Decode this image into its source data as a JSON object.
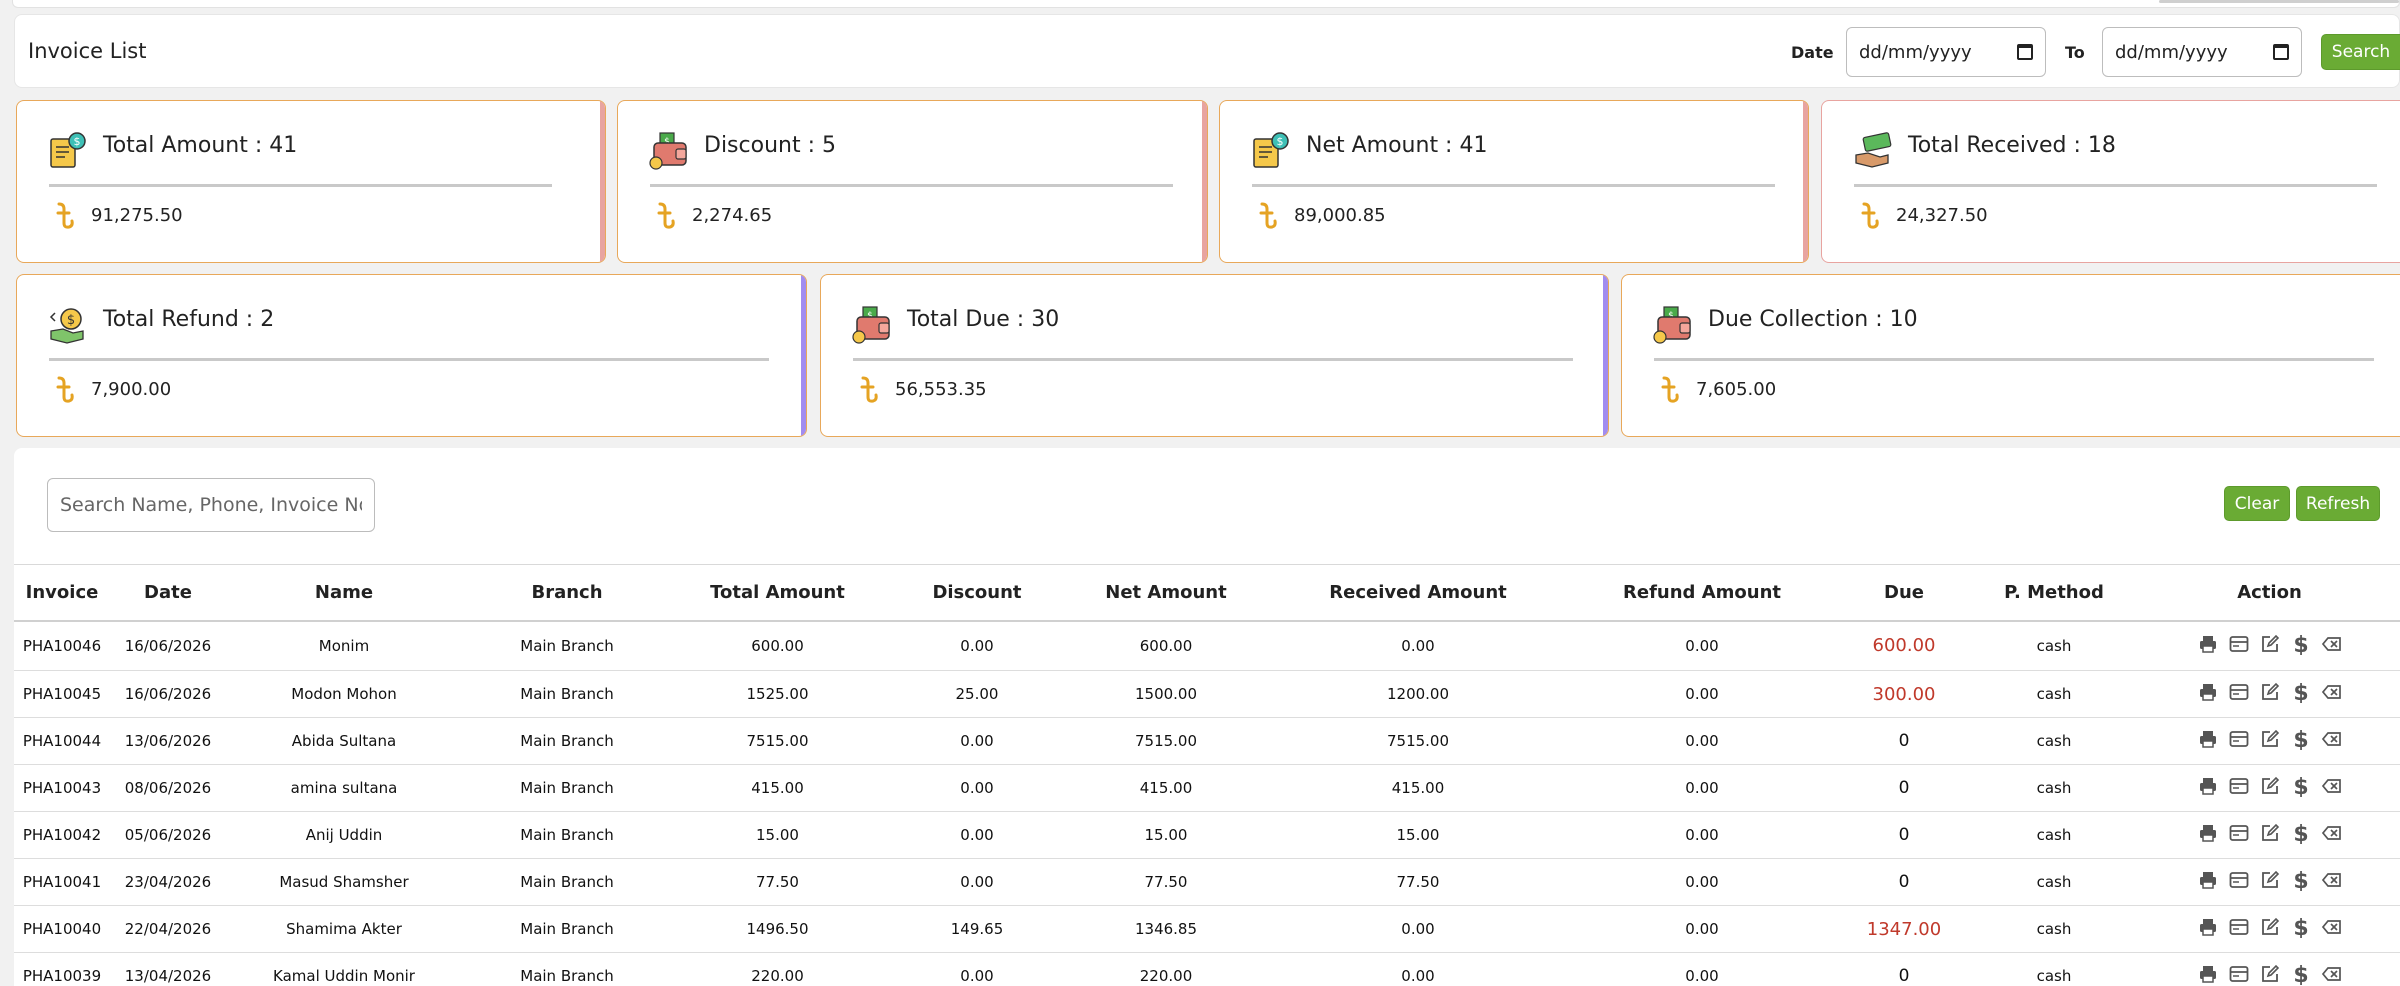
{
  "header": {
    "title": "Invoice List",
    "date_label": "Date",
    "to_label": "To",
    "date_from_placeholder": "dd/mm/yyyy",
    "date_to_placeholder": "dd/mm/yyyy",
    "search_label": "Search"
  },
  "currency_icon": "taka-icon",
  "cards": [
    {
      "label": "Total Amount : 41",
      "amount": "91,275.50",
      "icon": "invoice-dollar-icon",
      "border": "#e8a85a",
      "accent": "#e8a4a0"
    },
    {
      "label": "Discount : 5",
      "amount": "2,274.65",
      "icon": "wallet-icon",
      "border": "#e8a85a",
      "accent": "#e8a4a0"
    },
    {
      "label": "Net Amount : 41",
      "amount": "89,000.85",
      "icon": "invoice-dollar-icon",
      "border": "#e8a85a",
      "accent": "#e8a4a0"
    },
    {
      "label": "Total Received : 18",
      "amount": "24,327.50",
      "icon": "cash-hand-icon",
      "border": "#e8a4a0",
      "accent": "#8fd18f"
    },
    {
      "label": "Total Refund : 2",
      "amount": "7,900.00",
      "icon": "refund-hand-icon",
      "border": "#e8a85a",
      "accent": "#a18cf0"
    },
    {
      "label": "Total Due : 30",
      "amount": "56,553.35",
      "icon": "wallet-icon",
      "border": "#e8a85a",
      "accent": "#a18cf0"
    },
    {
      "label": "Due Collection : 10",
      "amount": "7,605.00",
      "icon": "wallet-icon",
      "border": "#e8a85a",
      "accent": "#2e6fd1"
    }
  ],
  "toolbar": {
    "search_placeholder": "Search Name, Phone, Invoice No",
    "clear_label": "Clear",
    "refresh_label": "Refresh"
  },
  "table": {
    "columns": [
      "Invoice",
      "Date",
      "Name",
      "Branch",
      "Total Amount",
      "Discount",
      "Net Amount",
      "Received Amount",
      "Refund Amount",
      "Due",
      "P. Method",
      "Action"
    ],
    "rows": [
      {
        "invoice": "PHA10046",
        "date": "16/06/2026",
        "name": "Monim",
        "branch": "Main Branch",
        "total": "600.00",
        "discount": "0.00",
        "net": "600.00",
        "received": "0.00",
        "refund": "0.00",
        "due": "600.00",
        "method": "cash"
      },
      {
        "invoice": "PHA10045",
        "date": "16/06/2026",
        "name": "Modon Mohon",
        "branch": "Main Branch",
        "total": "1525.00",
        "discount": "25.00",
        "net": "1500.00",
        "received": "1200.00",
        "refund": "0.00",
        "due": "300.00",
        "method": "cash"
      },
      {
        "invoice": "PHA10044",
        "date": "13/06/2026",
        "name": "Abida Sultana",
        "branch": "Main Branch",
        "total": "7515.00",
        "discount": "0.00",
        "net": "7515.00",
        "received": "7515.00",
        "refund": "0.00",
        "due": "0",
        "method": "cash"
      },
      {
        "invoice": "PHA10043",
        "date": "08/06/2026",
        "name": "amina sultana",
        "branch": "Main Branch",
        "total": "415.00",
        "discount": "0.00",
        "net": "415.00",
        "received": "415.00",
        "refund": "0.00",
        "due": "0",
        "method": "cash"
      },
      {
        "invoice": "PHA10042",
        "date": "05/06/2026",
        "name": "Anij Uddin",
        "branch": "Main Branch",
        "total": "15.00",
        "discount": "0.00",
        "net": "15.00",
        "received": "15.00",
        "refund": "0.00",
        "due": "0",
        "method": "cash"
      },
      {
        "invoice": "PHA10041",
        "date": "23/04/2026",
        "name": "Masud Shamsher",
        "branch": "Main Branch",
        "total": "77.50",
        "discount": "0.00",
        "net": "77.50",
        "received": "77.50",
        "refund": "0.00",
        "due": "0",
        "method": "cash"
      },
      {
        "invoice": "PHA10040",
        "date": "22/04/2026",
        "name": "Shamima Akter",
        "branch": "Main Branch",
        "total": "1496.50",
        "discount": "149.65",
        "net": "1346.85",
        "received": "0.00",
        "refund": "0.00",
        "due": "1347.00",
        "method": "cash"
      },
      {
        "invoice": "PHA10039",
        "date": "13/04/2026",
        "name": "Kamal Uddin Monir",
        "branch": "Main Branch",
        "total": "220.00",
        "discount": "0.00",
        "net": "220.00",
        "received": "0.00",
        "refund": "0.00",
        "due": "0",
        "method": "cash"
      }
    ],
    "action_icons": [
      "print-icon",
      "receipt-icon",
      "edit-icon",
      "dollar-icon",
      "delete-icon"
    ],
    "due_color": "#c0392b"
  }
}
